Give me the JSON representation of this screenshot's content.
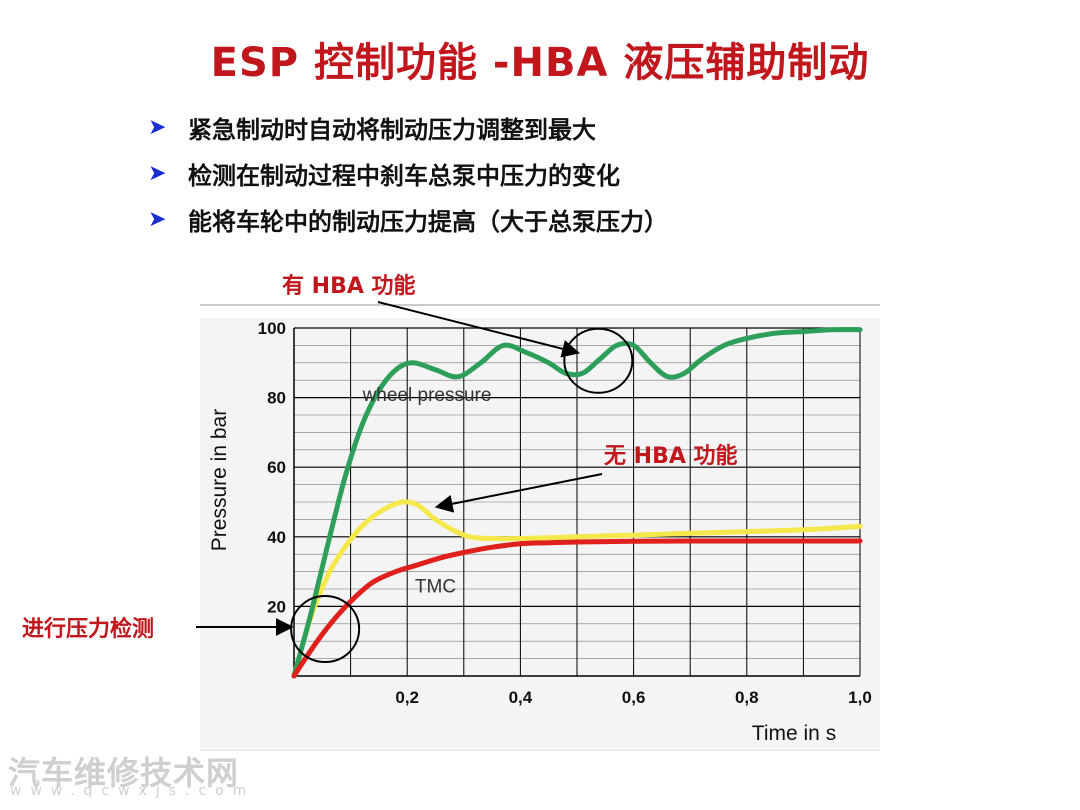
{
  "slide": {
    "title": "ESP 控制功能 -HBA 液压辅助制动",
    "bullets": [
      "紧急制动时自动将制动压力调整到最大",
      "检测在制动过程中刹车总泵中压力的变化",
      "能将车轮中的制动压力提高（大于总泵压力）"
    ],
    "bullet_icon": "arrow-right-icon",
    "accent_color": "#c0161c",
    "bullet_color": "#1a2fd0"
  },
  "chart_data": {
    "type": "line",
    "xlabel": "Time in s",
    "ylabel": "Pressure in bar",
    "xlim": [
      0,
      1.0
    ],
    "ylim": [
      0,
      100
    ],
    "x_ticks": [
      "0,2",
      "0,4",
      "0,6",
      "0,8",
      "1,0"
    ],
    "x_tick_values": [
      0.2,
      0.4,
      0.6,
      0.8,
      1.0
    ],
    "y_ticks": [
      "20",
      "40",
      "60",
      "80",
      "100"
    ],
    "y_tick_values": [
      20,
      40,
      60,
      80,
      100
    ],
    "grid": true,
    "series": [
      {
        "name": "wheel pressure",
        "color": "#2e9e5b",
        "x": [
          0,
          0.03,
          0.06,
          0.09,
          0.12,
          0.15,
          0.18,
          0.21,
          0.25,
          0.29,
          0.33,
          0.37,
          0.41,
          0.45,
          0.48,
          0.51,
          0.54,
          0.57,
          0.6,
          0.63,
          0.66,
          0.69,
          0.72,
          0.76,
          0.8,
          0.85,
          0.9,
          0.95,
          1.0
        ],
        "y": [
          0,
          18,
          38,
          57,
          72,
          82,
          88,
          90,
          88,
          86,
          90,
          95,
          93,
          90,
          87,
          87,
          91,
          95,
          95,
          90,
          86,
          87,
          91,
          95,
          97,
          98.5,
          99,
          99.5,
          99.5
        ]
      },
      {
        "name": "",
        "color": "#f5e84a",
        "x": [
          0,
          0.03,
          0.06,
          0.09,
          0.12,
          0.15,
          0.18,
          0.2,
          0.22,
          0.25,
          0.28,
          0.31,
          0.35,
          0.4,
          0.5,
          0.6,
          0.7,
          0.8,
          0.9,
          1.0
        ],
        "y": [
          0,
          17,
          29,
          37,
          43,
          47,
          49.5,
          50,
          49,
          45,
          42,
          40,
          39.5,
          39.5,
          40,
          40.5,
          41,
          41.5,
          42,
          43
        ]
      },
      {
        "name": "TMC",
        "color": "#e0201c",
        "x": [
          0,
          0.02,
          0.05,
          0.08,
          0.11,
          0.14,
          0.18,
          0.22,
          0.26,
          0.3,
          0.35,
          0.4,
          0.45,
          0.5,
          0.6,
          0.7,
          0.8,
          0.9,
          1.0
        ],
        "y": [
          0,
          5,
          12,
          18,
          23,
          27,
          30,
          32,
          34,
          35.5,
          37,
          38,
          38.3,
          38.5,
          38.7,
          38.8,
          38.8,
          38.8,
          38.8
        ]
      }
    ],
    "annotations": [
      {
        "text": "wheel pressure",
        "x": 0.235,
        "y": 81
      },
      {
        "text": "TMC",
        "x": 0.25,
        "y": 26
      }
    ],
    "callouts": [
      {
        "text": "有 HBA 功能",
        "target_x": 0.52,
        "target_y": 90
      },
      {
        "text": "无 HBA 功能",
        "target_x": 0.25,
        "target_y": 48
      },
      {
        "text": "进行压力检测",
        "target_x": 0.0,
        "target_y": 14
      }
    ]
  },
  "watermark": {
    "text": "汽车维修技术网",
    "url": "www.qcwxjs.com"
  }
}
